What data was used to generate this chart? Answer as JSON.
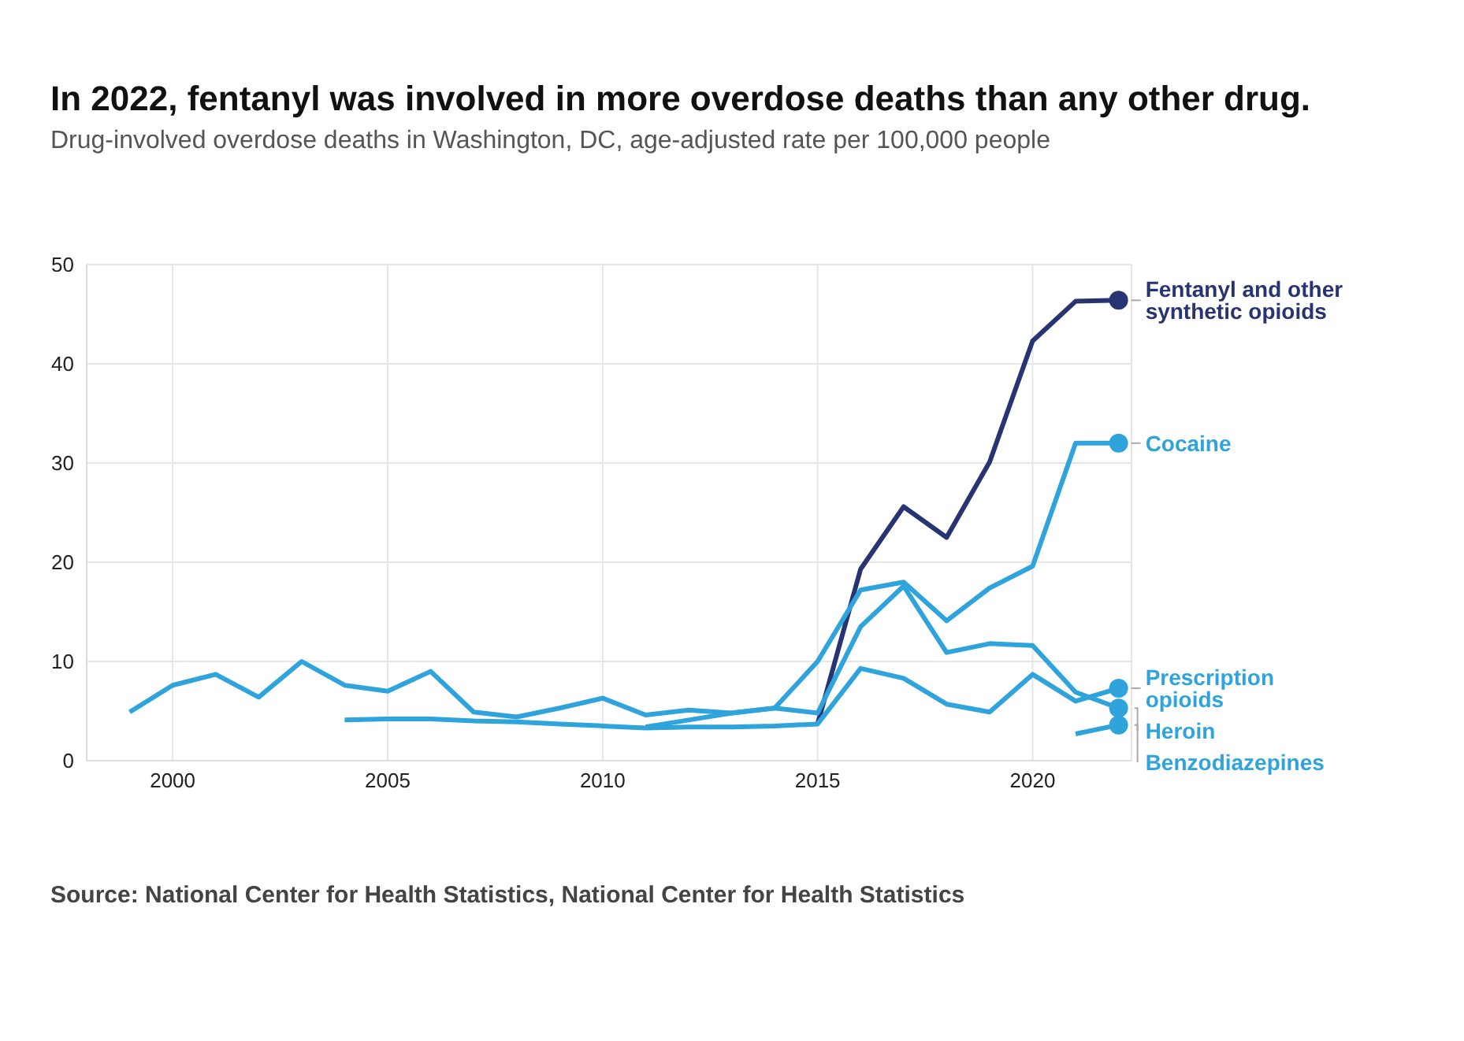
{
  "chart_data": {
    "type": "line",
    "title": "In 2022, fentanyl was involved in more overdose deaths than any other drug.",
    "subtitle": "Drug-involved overdose deaths in Washington, DC, age-adjusted rate per 100,000 people",
    "annotations": [
      "Source: National Center for Health Statistics, National Center for Health Statistics"
    ],
    "series": [
      {
        "name": "Fentanyl and other synthetic opioids",
        "color": "#283372",
        "x": [
          2015,
          2016,
          2017,
          2018,
          2019,
          2020,
          2021,
          2022
        ],
        "values": [
          3.7,
          19.3,
          25.6,
          22.5,
          30.1,
          42.3,
          46.3,
          46.4
        ]
      },
      {
        "name": "Cocaine",
        "color": "#2ea3dc",
        "x": [
          1999,
          2000,
          2001,
          2002,
          2003,
          2004,
          2005,
          2006,
          2007,
          2008,
          2009,
          2010,
          2011,
          2012,
          2013,
          2014,
          2015,
          2016,
          2017,
          2018,
          2019,
          2020,
          2021,
          2022
        ],
        "values": [
          4.9,
          7.6,
          8.7,
          6.4,
          10.0,
          7.6,
          7.0,
          9.0,
          4.9,
          4.4,
          5.3,
          6.3,
          4.6,
          5.1,
          4.8,
          5.3,
          10.0,
          17.2,
          18.0,
          14.1,
          17.4,
          19.6,
          32.0,
          32.0
        ]
      },
      {
        "name": "Prescription opioids",
        "color": "#2ea3dc",
        "x": [
          2004,
          2005,
          2006,
          2007,
          2008,
          2009,
          2010,
          2011,
          2012,
          2013,
          2014,
          2015,
          2016,
          2017,
          2018,
          2019,
          2020,
          2021,
          2022
        ],
        "values": [
          4.1,
          4.2,
          4.2,
          4.0,
          3.9,
          3.7,
          3.5,
          3.3,
          3.4,
          3.4,
          3.5,
          3.7,
          9.3,
          8.3,
          5.7,
          4.9,
          8.7,
          6.0,
          7.3
        ]
      },
      {
        "name": "Heroin",
        "color": "#2ea3dc",
        "x": [
          2011,
          2012,
          2013,
          2014,
          2015,
          2016,
          2017,
          2018,
          2019,
          2020,
          2021,
          2022
        ],
        "values": [
          3.4,
          4.1,
          4.8,
          5.3,
          4.8,
          13.5,
          17.6,
          10.9,
          11.8,
          11.6,
          6.9,
          5.3
        ]
      },
      {
        "name": "Benzodiazepines",
        "color": "#2ea3dc",
        "x": [
          2021,
          2022
        ],
        "values": [
          2.7,
          3.6
        ]
      }
    ],
    "xlim": [
      1998,
      2022.3
    ],
    "xticks": [
      2000,
      2005,
      2010,
      2015,
      2020
    ],
    "ylim": [
      0,
      50
    ],
    "yticks": [
      0,
      10,
      20,
      30,
      40,
      50
    ],
    "grid": true
  }
}
